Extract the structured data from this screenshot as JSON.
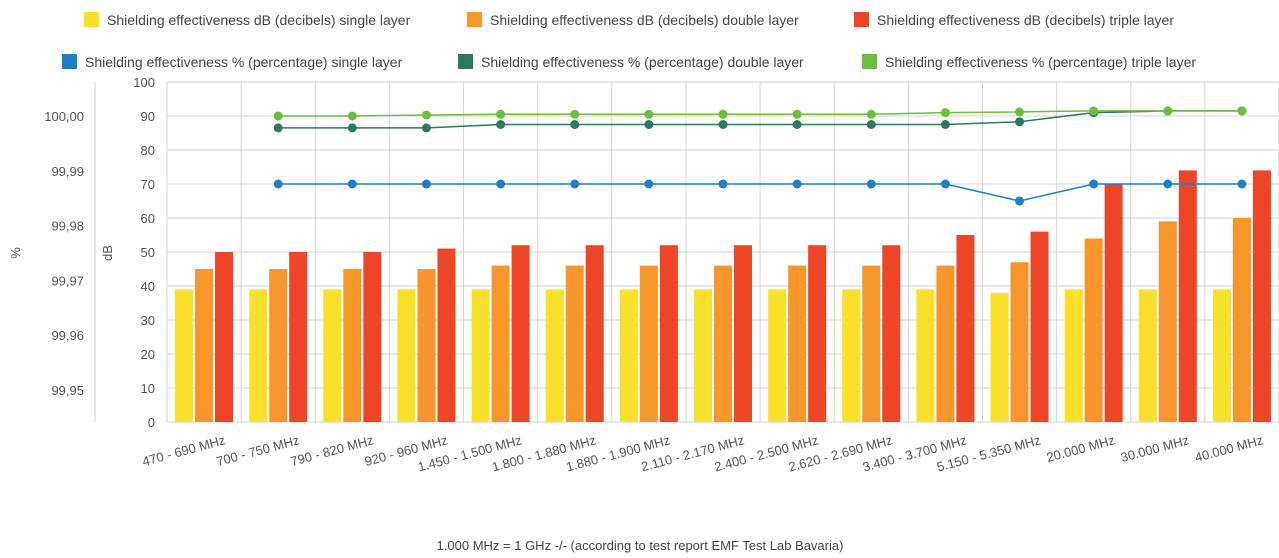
{
  "chart_data": {
    "type": "bar",
    "categories": [
      "470 - 690 MHz",
      "700 - 750 MHz",
      "790 - 820 MHz",
      "920 - 960 MHz",
      "1.450 - 1.500 MHz",
      "1.800 - 1.880 MHz",
      "1.880 - 1.900 MHz",
      "2.110 - 2.170 MHz",
      "2.400 - 2.500 MHz",
      "2.620 - 2.690 MHz",
      "3.400 - 3.700 MHz",
      "5.150 - 5.350 MHz",
      "20.000 MHz",
      "30.000 MHz",
      "40.000 MHz"
    ],
    "bar_series": [
      {
        "name": "Shielding effectiveness dB (decibels) single layer",
        "color": "#f9e02a",
        "values": [
          39,
          39,
          39,
          39,
          39,
          39,
          39,
          39,
          39,
          39,
          39,
          38,
          39,
          39,
          39
        ]
      },
      {
        "name": "Shielding effectiveness dB (decibels) double layer",
        "color": "#f7962a",
        "values": [
          45,
          45,
          45,
          45,
          46,
          46,
          46,
          46,
          46,
          46,
          46,
          47,
          54,
          59,
          60
        ]
      },
      {
        "name": "Shielding effectiveness dB (decibels) triple layer",
        "color": "#ee4427",
        "values": [
          50,
          50,
          50,
          51,
          52,
          52,
          52,
          52,
          52,
          52,
          55,
          56,
          70,
          74,
          74
        ]
      }
    ],
    "line_series": [
      {
        "name": "Shielding effectiveness % (percentage) single layer",
        "color": "#1f7fc4",
        "values": [
          null,
          70,
          70,
          70,
          70,
          70,
          70,
          70,
          70,
          70,
          70,
          65,
          70,
          70,
          70
        ]
      },
      {
        "name": "Shielding effectiveness % (percentage) double layer",
        "color": "#2b7a5c",
        "values": [
          null,
          86.5,
          86.5,
          86.5,
          87.5,
          87.5,
          87.5,
          87.5,
          87.5,
          87.5,
          87.5,
          88.3,
          91,
          91.5,
          91.5
        ]
      },
      {
        "name": "Shielding effectiveness % (percentage) triple layer",
        "color": "#6cbf3e",
        "values": [
          null,
          90,
          90,
          90.3,
          90.5,
          90.5,
          90.5,
          90.5,
          90.5,
          90.5,
          91,
          91.2,
          91.5,
          91.5,
          91.5
        ]
      }
    ],
    "left_axis": {
      "title": "%",
      "ticks": [
        "100,00",
        "99,99",
        "99,98",
        "99,97",
        "99,96",
        "99,95"
      ]
    },
    "right_axis": {
      "title": "dB",
      "ylim": [
        0,
        100
      ],
      "ticks": [
        0,
        10,
        20,
        30,
        40,
        50,
        60,
        70,
        80,
        90,
        100
      ]
    },
    "caption": "1.000 MHz = 1 GHz -/- (according to test report EMF Test Lab Bavaria)",
    "grid": true,
    "legend_placement": "top"
  }
}
